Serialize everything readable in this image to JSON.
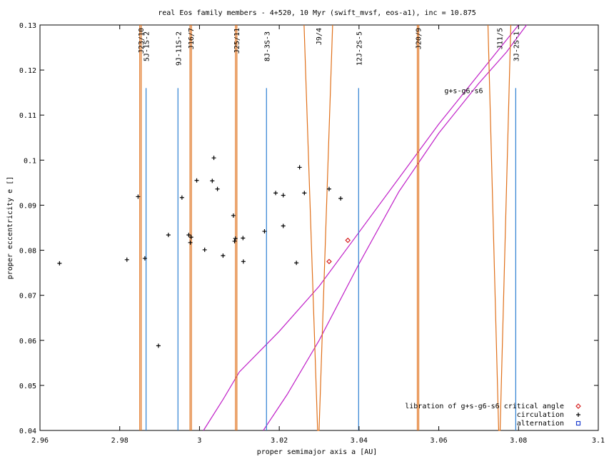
{
  "chart_data": {
    "type": "scatter",
    "title": "real Eos family members - 4+520, 10 Myr (swift_mvsf, eos-a1), inc = 10.875",
    "xlabel": "proper semimajor axis a [AU]",
    "ylabel": "proper eccentricity e []",
    "xlim": [
      2.96,
      3.1
    ],
    "ylim": [
      0.04,
      0.13
    ],
    "xticks": [
      2.96,
      2.98,
      3,
      3.02,
      3.04,
      3.06,
      3.08,
      3.1
    ],
    "xtick_labels": [
      "2.96",
      "2.98",
      "3",
      "3.02",
      "3.04",
      "3.06",
      "3.08",
      "3.1"
    ],
    "yticks": [
      0.04,
      0.05,
      0.06,
      0.07,
      0.08,
      0.09,
      0.1,
      0.11,
      0.12,
      0.13
    ],
    "ytick_labels": [
      "0.04",
      "0.05",
      "0.06",
      "0.07",
      "0.08",
      "0.09",
      "0.1",
      "0.11",
      "0.12",
      "0.13"
    ],
    "legend_position": "bottom-right",
    "series": [
      {
        "name": "libration of g+s-g6-s6 critical angle",
        "marker": "diamond",
        "color": "#d62020",
        "points": [
          [
            3.0325,
            0.0775
          ],
          [
            3.0372,
            0.0822
          ]
        ]
      },
      {
        "name": "circulation",
        "marker": "plus",
        "color": "#000000",
        "points": [
          [
            2.9649,
            0.0771
          ],
          [
            2.9818,
            0.0779
          ],
          [
            2.9846,
            0.0919
          ],
          [
            2.9863,
            0.0782
          ],
          [
            2.9897,
            0.0588
          ],
          [
            2.9922,
            0.0834
          ],
          [
            2.9956,
            0.0917
          ],
          [
            2.9973,
            0.0834
          ],
          [
            2.9977,
            0.0817
          ],
          [
            2.9979,
            0.0829
          ],
          [
            2.9993,
            0.0955
          ],
          [
            3.0013,
            0.0801
          ],
          [
            3.0032,
            0.0954
          ],
          [
            3.0036,
            0.1005
          ],
          [
            3.0045,
            0.0936
          ],
          [
            3.0059,
            0.0788
          ],
          [
            3.0085,
            0.0877
          ],
          [
            3.0088,
            0.082
          ],
          [
            3.009,
            0.0826
          ],
          [
            3.0109,
            0.0827
          ],
          [
            3.011,
            0.0775
          ],
          [
            3.0163,
            0.0842
          ],
          [
            3.0191,
            0.0927
          ],
          [
            3.021,
            0.0922
          ],
          [
            3.021,
            0.0854
          ],
          [
            3.0243,
            0.0772
          ],
          [
            3.0251,
            0.0984
          ],
          [
            3.0263,
            0.0927
          ],
          [
            3.0325,
            0.0936
          ],
          [
            3.0354,
            0.0915
          ]
        ]
      },
      {
        "name": "alternation",
        "marker": "square",
        "color": "#1f3fd0",
        "points": []
      }
    ],
    "resonances_jupiter": [
      {
        "label": "J23/10",
        "a": 2.9852
      },
      {
        "label": "J16/7",
        "a": 2.9978
      },
      {
        "label": "J25/11",
        "a": 3.0092
      },
      {
        "label": "J9/4",
        "a": 3.0298
      },
      {
        "label": "J20/9",
        "a": 3.0548
      },
      {
        "label": "J11/5",
        "a": 3.0752
      }
    ],
    "resonances_three_body": [
      {
        "label": "5J-1S-2",
        "a": 2.9866,
        "e_top": 0.116
      },
      {
        "label": "9J-11S-2",
        "a": 2.9946,
        "e_top": 0.116
      },
      {
        "label": "8J-3S-3",
        "a": 3.0168,
        "e_top": 0.116
      },
      {
        "label": "12J-2S-5",
        "a": 3.0399,
        "e_top": 0.116
      },
      {
        "label": "3J-2S-1",
        "a": 3.0793,
        "e_top": 0.116
      }
    ],
    "secular_resonance": {
      "label": "g+s-g6-s6",
      "upper_boundary": [
        [
          3.001,
          0.04
        ],
        [
          3.006,
          0.047
        ],
        [
          3.01,
          0.053
        ],
        [
          3.02,
          0.062
        ],
        [
          3.03,
          0.072
        ],
        [
          3.04,
          0.084
        ],
        [
          3.05,
          0.096
        ],
        [
          3.06,
          0.108
        ],
        [
          3.07,
          0.119
        ],
        [
          3.08,
          0.13
        ]
      ],
      "lower_boundary": [
        [
          3.016,
          0.04
        ],
        [
          3.022,
          0.048
        ],
        [
          3.03,
          0.06
        ],
        [
          3.04,
          0.077
        ],
        [
          3.05,
          0.093
        ],
        [
          3.06,
          0.106
        ],
        [
          3.07,
          0.117
        ],
        [
          3.077,
          0.124
        ],
        [
          3.082,
          0.13
        ]
      ]
    }
  },
  "colors": {
    "resonance": "#e0701a",
    "three_body": "#2c7fd2",
    "secular": "#c020c8",
    "axis": "#000000"
  }
}
